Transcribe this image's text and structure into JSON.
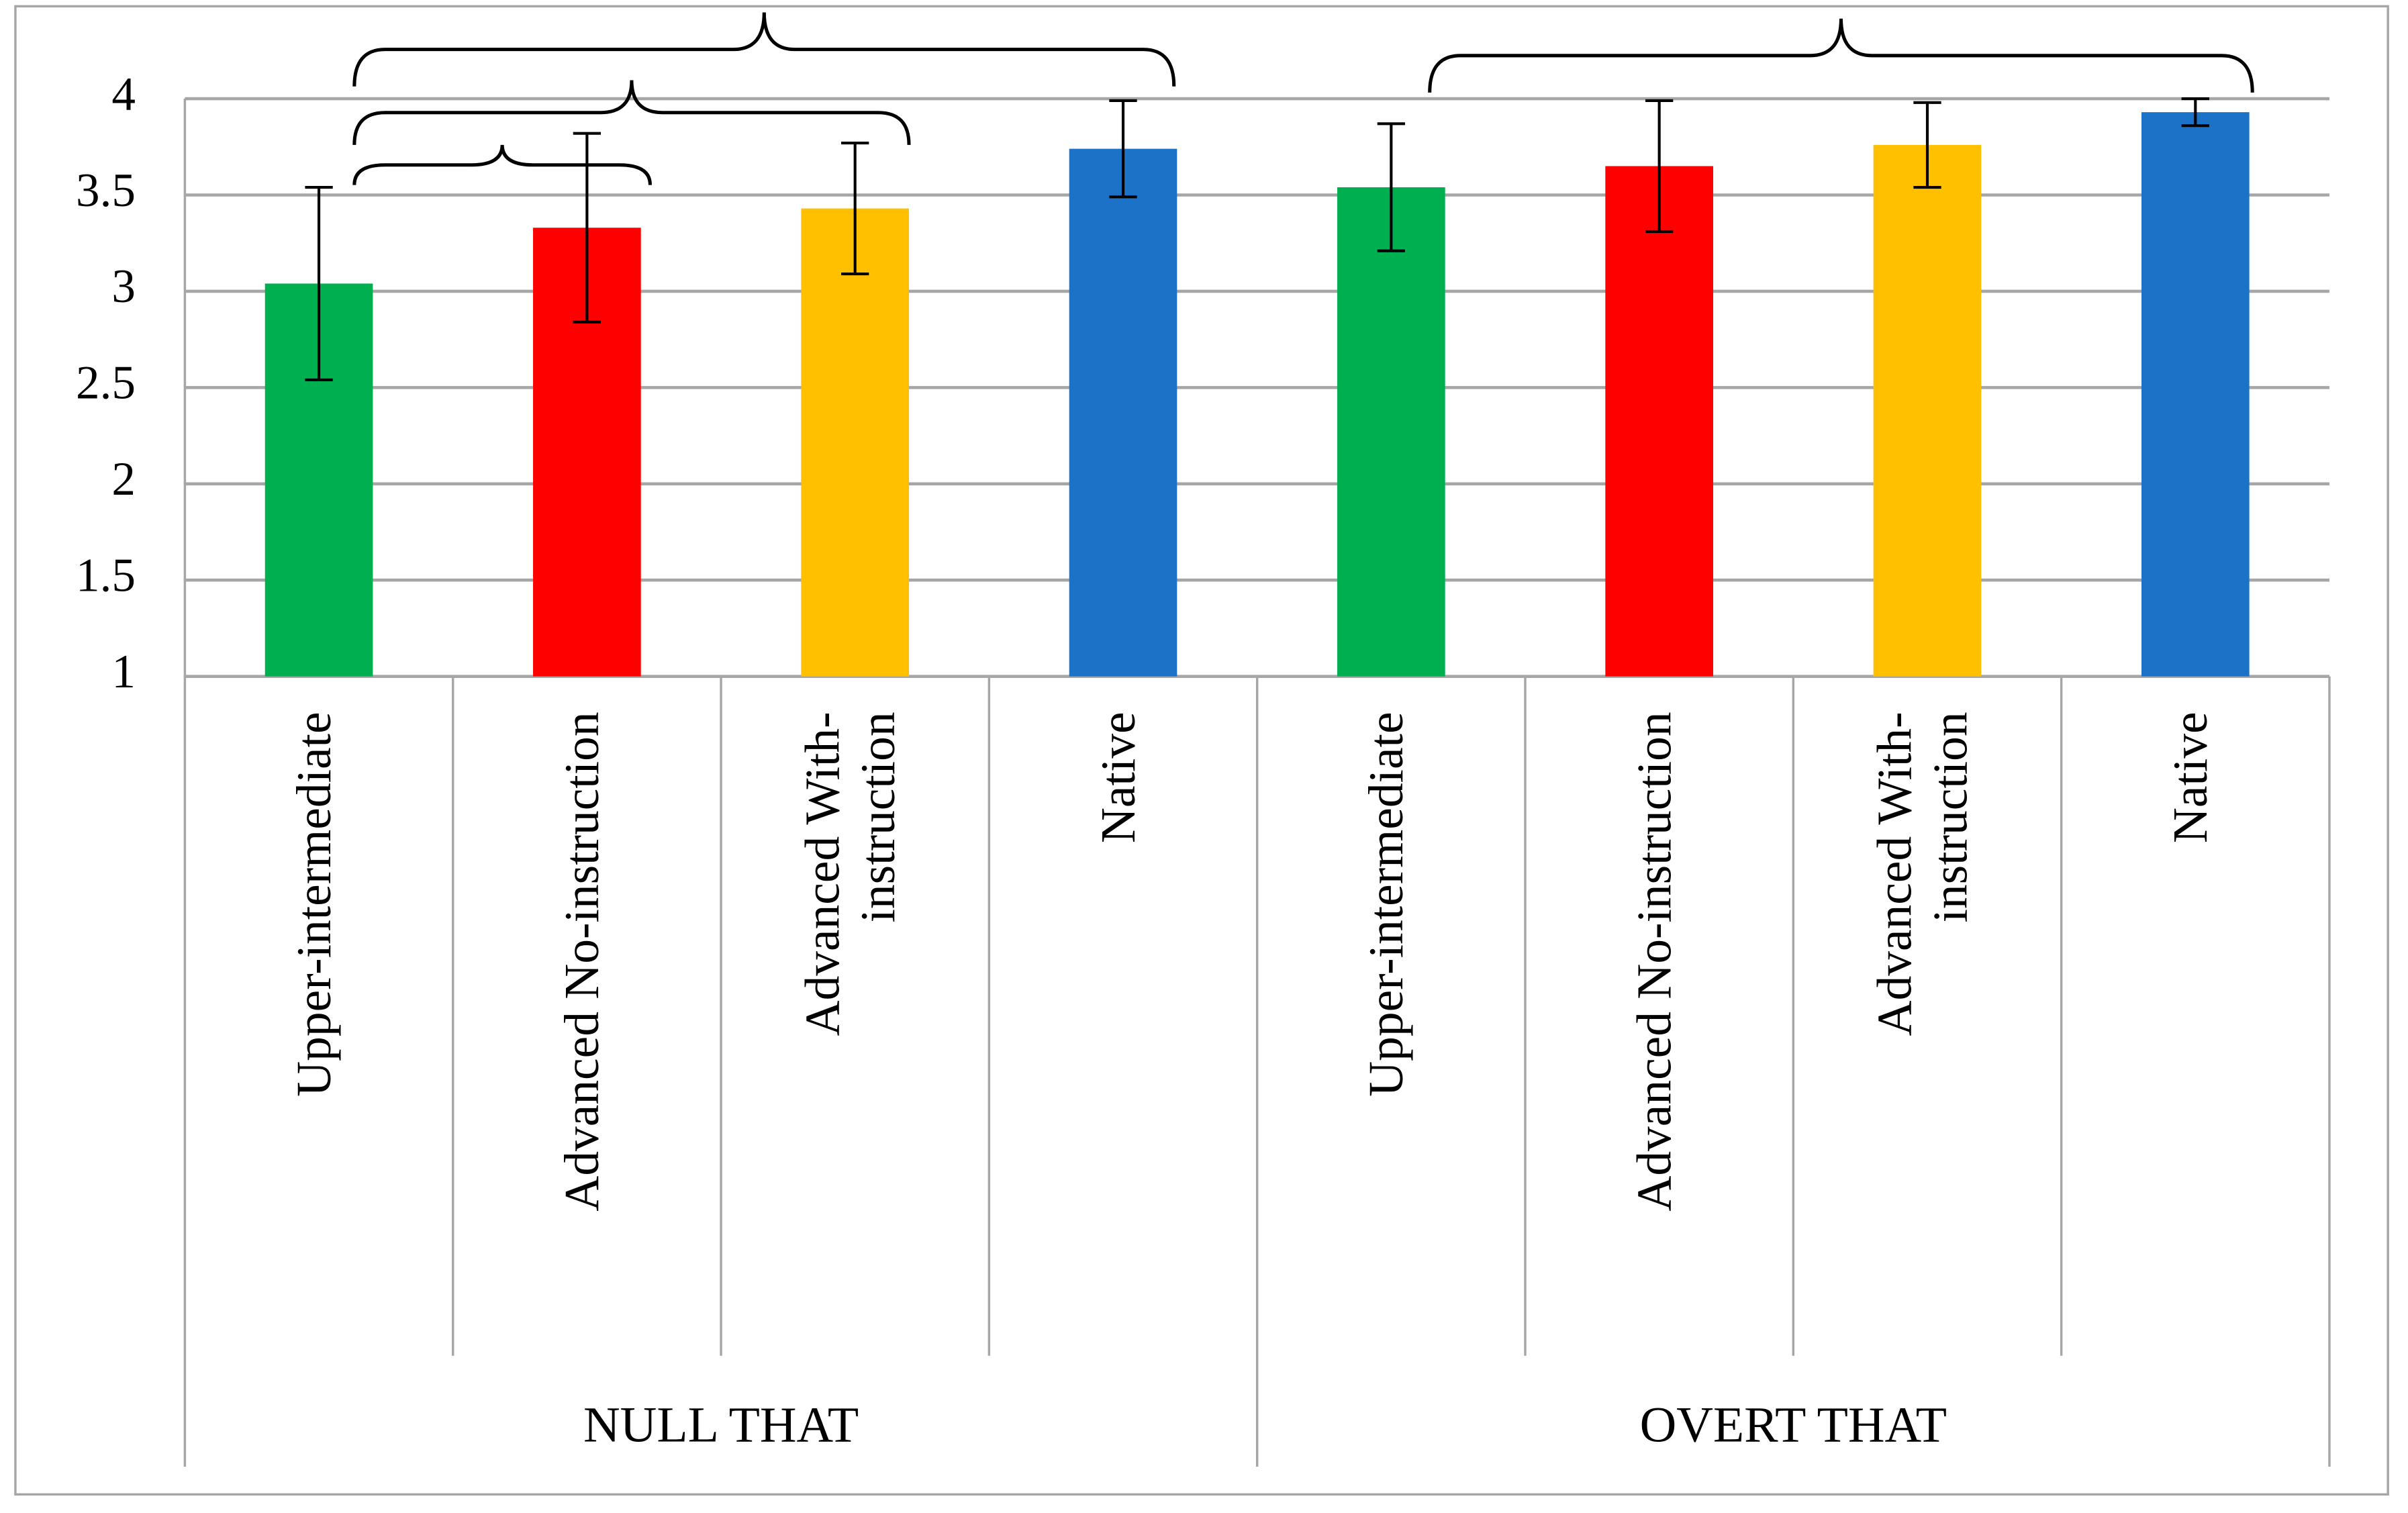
{
  "chart_data": {
    "type": "bar",
    "groups": [
      {
        "name": "NULL THAT",
        "categories": [
          "Upper-intermediate",
          "Advanced No-instruction",
          "Advanced With-\ninstruction",
          "Native"
        ],
        "values": [
          3.04,
          3.33,
          3.43,
          3.74
        ],
        "errors": [
          0.5,
          0.49,
          0.34,
          0.25
        ]
      },
      {
        "name": "OVERT THAT",
        "categories": [
          "Upper-intermediate",
          "Advanced No-instruction",
          "Advanced With-\ninstruction",
          "Native"
        ],
        "values": [
          3.54,
          3.65,
          3.76,
          3.93
        ],
        "errors": [
          0.33,
          0.34,
          0.22,
          0.07
        ]
      }
    ],
    "colors": [
      "#00b050",
      "#ff0000",
      "#ffc000",
      "#1b72c6"
    ],
    "ylim": [
      1,
      4
    ],
    "yticks": [
      1,
      1.5,
      2,
      2.5,
      3,
      3.5,
      4
    ],
    "grid": true
  }
}
